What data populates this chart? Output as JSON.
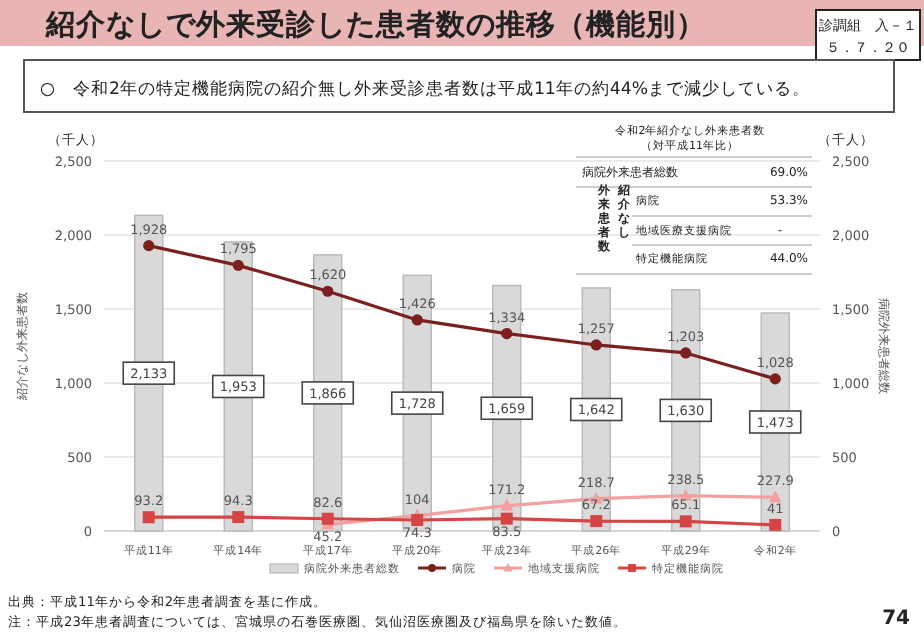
{
  "chart_data": {
    "type": "bar",
    "title": "紹介なしで外来受診した患者数の推移（機能別）",
    "subtitle": "○　令和2年の特定機能病院の紹介無し外来受診患者数は平成11年の約44%まで減少している。",
    "categories": [
      "平成11年",
      "平成14年",
      "平成17年",
      "平成20年",
      "平成23年",
      "平成26年",
      "平成29年",
      "令和2年"
    ],
    "series": [
      {
        "name": "病院外来患者総数",
        "axis": "y2",
        "color": "#d9d9d9",
        "values": [
          2133,
          1953,
          1866,
          1728,
          1659,
          1642,
          1630,
          1473
        ],
        "value_labels": [
          "2,133",
          "1,953",
          "1,866",
          "1,728",
          "1,659",
          "1,642",
          "1,630",
          "1,473"
        ]
      },
      {
        "name": "病院",
        "type": "line",
        "color": "#7b1f1f",
        "marker": "circle",
        "values": [
          1928,
          1795,
          1620,
          1426,
          1334,
          1257,
          1203,
          1028
        ],
        "value_labels": [
          "1,928",
          "1,795",
          "1,620",
          "1,426",
          "1,334",
          "1,257",
          "1,203",
          "1,028"
        ]
      },
      {
        "name": "地域支援病院",
        "type": "line",
        "color": "#f2a0a0",
        "marker": "triangle",
        "values": [
          null,
          null,
          45.2,
          104,
          171.2,
          218.7,
          238.5,
          227.9
        ]
      },
      {
        "name": "特定機能病院",
        "type": "line",
        "color": "#d64545",
        "marker": "square",
        "values": [
          93.2,
          94.3,
          82.6,
          74.3,
          83.5,
          67.2,
          65.1,
          41
        ]
      }
    ],
    "ylabel": "紹介なし外来患者数",
    "y2label": "病院外来患者総数",
    "ylim": [
      0,
      2500
    ],
    "yticks": [
      0,
      500,
      {
        "value": 1000,
        "label": "1,000"
      },
      {
        "value": 1500,
        "label": "1,500"
      },
      {
        "value": 2000,
        "label": "2,000"
      },
      {
        "value": 2500,
        "label": "2,500"
      }
    ],
    "y2lim": [
      0,
      2500
    ],
    "y2ticks": [
      0,
      500,
      {
        "value": 1000,
        "label": "1,000"
      },
      {
        "value": 1500,
        "label": "1,500"
      },
      {
        "value": 2000,
        "label": "2,000"
      },
      {
        "value": 2500,
        "label": "2,500"
      }
    ],
    "grid": "y",
    "legend": "bottom",
    "data_labels": true,
    "annotations": [
      "（千人）",
      "（千人）",
      "令和2年紹介なし外来患者数",
      "（対平成11年比）",
      "病院外来患者総数",
      "69.0%",
      "紹介なし",
      "外来患者数",
      "病院",
      "53.3%",
      "地域医療支援病院",
      "-",
      "特定機能病院",
      "44.0%",
      "出典：平成11年から令和2年患者調査を基に作成。",
      "注：平成23年患者調査については、宮城県の石巻医療圏、気仙沼医療圏及び福島県を除いた数値。",
      "74",
      "診調組　入－１",
      "５．７．２０"
    ]
  }
}
